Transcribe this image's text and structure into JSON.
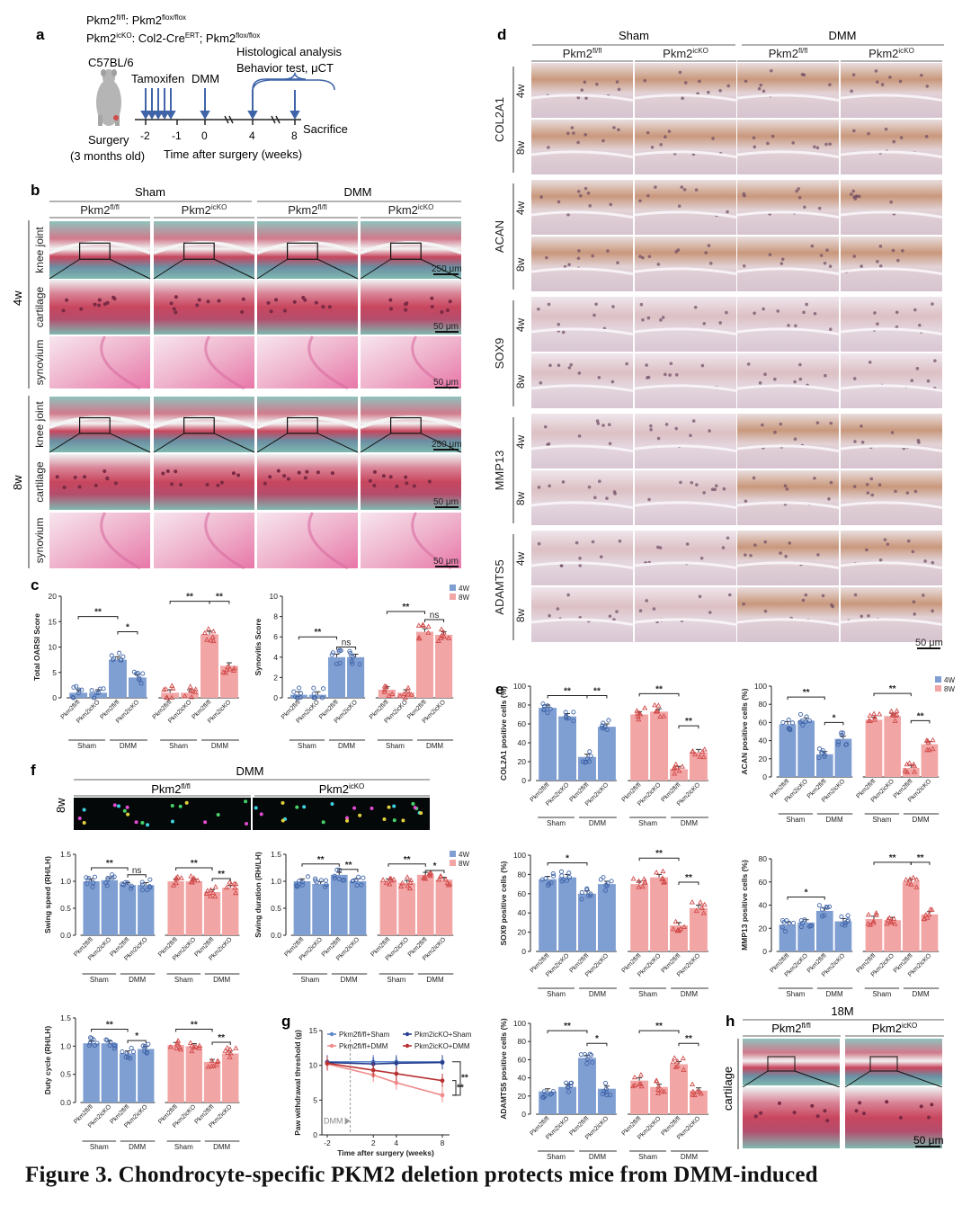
{
  "figure_caption": "Figure 3. Chondrocyte-specific PKM2 deletion protects mice from DMM-induced",
  "colors": {
    "blue": "#7f9ed2",
    "blue_dark": "#3f64a8",
    "red": "#f2a5a5",
    "red_dark": "#d24b4b",
    "sofr_red": "#c8465e",
    "sofr_teal": "#7fb9b0",
    "he_pink": "#f0a8c8",
    "ihc_bg": "#ebe0e6",
    "ihc_brown": "#b07a5a"
  },
  "panels": {
    "a": {
      "letter": "a",
      "genotype_ctrl": {
        "pre": "Pkm2",
        "sup": "fl/fl",
        "post": ": Pkm2",
        "sup2": "flox/flox"
      },
      "genotype_ko": {
        "pre": "Pkm2",
        "sup": "icKO",
        "post": ": Col2-Cre",
        "sup2": "ERT",
        "post2": "; Pkm2",
        "sup3": "flox/flox"
      },
      "strain": "C57BL/6",
      "tamoxifen": "Tamoxifen",
      "dmm": "DMM",
      "histology": "Histological analysis",
      "behavior": "Behavior test, μCT",
      "sacrifice": "Sacrifice",
      "surgery": "Surgery",
      "age": "(3 months old)",
      "axis_title": "Time after surgery (weeks)",
      "ticks": [
        "-2",
        "-1",
        "0",
        "4",
        "8"
      ]
    },
    "b": {
      "letter": "b",
      "group_sham": "Sham",
      "group_dmm": "DMM",
      "cols": [
        {
          "pre": "Pkm2",
          "sup": "fl/fl"
        },
        {
          "pre": "Pkm2",
          "sup": "icKO"
        },
        {
          "pre": "Pkm2",
          "sup": "fl/fl"
        },
        {
          "pre": "Pkm2",
          "sup": "icKO"
        }
      ],
      "time_4w": "4w",
      "time_8w": "8w",
      "row_labels": [
        "knee joint",
        "cartilage",
        "synovium"
      ],
      "scale_joint": "250 μm",
      "scale_cart": "50 μm",
      "scale_syn": "50 μm"
    },
    "c": {
      "letter": "c",
      "ylabel_left": "Total OARSI Score",
      "ylabel_right": "Synovitis Score",
      "yticks_left": [
        "0",
        "5",
        "10",
        "15",
        "20"
      ],
      "yticks_right": [
        "0",
        "2",
        "4",
        "6",
        "8",
        "10"
      ],
      "legend": [
        "4W",
        "8W"
      ],
      "sig_double": "**",
      "sig_single": "*",
      "sig_ns": "ns",
      "groups": [
        "Sham",
        "DMM"
      ]
    },
    "d": {
      "letter": "d",
      "group_sham": "Sham",
      "group_dmm": "DMM",
      "markers": [
        "COL2A1",
        "ACAN",
        "SOX9",
        "MMP13",
        "ADAMTS5"
      ],
      "times": [
        "4w",
        "8w"
      ],
      "scale": "50 μm"
    },
    "e": {
      "letter": "e",
      "legend": [
        "4W",
        "8W"
      ],
      "ylabels": [
        "COL2A1 positive cells (%)",
        "ACAN positive cells (%)",
        "SOX9 positive cells (%)",
        "MMP13 positive cells (%)",
        "ADAMTS5 positive cells (%)"
      ],
      "yticks100": [
        "0",
        "20",
        "40",
        "60",
        "80",
        "100"
      ],
      "yticks80": [
        "0",
        "20",
        "40",
        "60",
        "80"
      ],
      "groups": [
        "Sham",
        "DMM"
      ]
    },
    "f": {
      "letter": "f",
      "group": "DMM",
      "time": "8w",
      "cols": [
        {
          "pre": "Pkm2",
          "sup": "fl/fl"
        },
        {
          "pre": "Pkm2",
          "sup": "icKO"
        }
      ],
      "ylabels": [
        "Swing speed (RH/LH)",
        "Swing duration (RH/LH)",
        "Duty cycle (RH/LH)"
      ],
      "yticks": [
        "0.0",
        "0.5",
        "1.0",
        "1.5"
      ],
      "legend": [
        "4W",
        "8W"
      ]
    },
    "g": {
      "letter": "g",
      "ylabel": "Paw withdrawal threshold (g)",
      "xlabel": "Time after surgery (weeks)",
      "dmm": "DMM",
      "xticks": [
        "-2",
        "2",
        "4",
        "8"
      ],
      "yticks": [
        "0",
        "5",
        "10",
        "15"
      ]
    },
    "h": {
      "letter": "h",
      "title": "18M",
      "cols": [
        {
          "pre": "Pkm2",
          "sup": "fl/fl"
        },
        {
          "pre": "Pkm2",
          "sup": "icKO"
        }
      ],
      "row": "cartilage",
      "scale": "50 μm"
    }
  },
  "tick_genotypes": {
    "ctrl": "Pkm2fl/fl",
    "ko": "Pkm2icKO"
  },
  "chart_data": [
    {
      "id": "c-oarsi",
      "type": "bar",
      "ylabel": "Total OARSI Score",
      "ylim": [
        0,
        20
      ],
      "categories": [
        "Sham Pkm2fl/fl",
        "Sham Pkm2icKO",
        "DMM Pkm2fl/fl",
        "DMM Pkm2icKO"
      ],
      "series": [
        {
          "name": "4W",
          "values": [
            1.0,
            1.0,
            7.5,
            4.0
          ]
        },
        {
          "name": "8W",
          "values": [
            1.0,
            1.0,
            12.5,
            6.3
          ]
        }
      ]
    },
    {
      "id": "c-synovitis",
      "type": "bar",
      "ylabel": "Synovitis Score",
      "ylim": [
        0,
        10
      ],
      "categories": [
        "Sham Pkm2fl/fl",
        "Sham Pkm2icKO",
        "DMM Pkm2fl/fl",
        "DMM Pkm2icKO"
      ],
      "series": [
        {
          "name": "4W",
          "values": [
            0.3,
            0.3,
            4.0,
            4.0
          ]
        },
        {
          "name": "8W",
          "values": [
            0.8,
            0.5,
            6.5,
            6.2
          ]
        }
      ]
    },
    {
      "id": "e-col2a1",
      "type": "bar",
      "ylabel": "COL2A1 positive cells (%)",
      "ylim": [
        0,
        100
      ],
      "series": [
        {
          "name": "4W",
          "values": [
            77,
            68,
            25,
            57
          ]
        },
        {
          "name": "8W",
          "values": [
            70,
            73,
            12,
            30
          ]
        }
      ]
    },
    {
      "id": "e-acan",
      "type": "bar",
      "ylabel": "ACAN positive cells (%)",
      "ylim": [
        0,
        100
      ],
      "series": [
        {
          "name": "4W",
          "values": [
            58,
            62,
            25,
            42
          ]
        },
        {
          "name": "8W",
          "values": [
            63,
            67,
            10,
            36
          ]
        }
      ]
    },
    {
      "id": "e-sox9",
      "type": "bar",
      "ylabel": "SOX9 positive cells (%)",
      "ylim": [
        0,
        100
      ],
      "series": [
        {
          "name": "4W",
          "values": [
            75,
            77,
            60,
            70
          ]
        },
        {
          "name": "8W",
          "values": [
            70,
            77,
            27,
            45
          ]
        }
      ]
    },
    {
      "id": "e-mmp13",
      "type": "bar",
      "ylabel": "MMP13 positive cells (%)",
      "ylim": [
        0,
        80
      ],
      "series": [
        {
          "name": "4W",
          "values": [
            23,
            25,
            35,
            26
          ]
        },
        {
          "name": "8W",
          "values": [
            28,
            27,
            60,
            32
          ]
        }
      ]
    },
    {
      "id": "e-adamts5",
      "type": "bar",
      "ylabel": "ADAMTS5 positive cells (%)",
      "ylim": [
        0,
        100
      ],
      "series": [
        {
          "name": "4W",
          "values": [
            25,
            30,
            62,
            28
          ]
        },
        {
          "name": "8W",
          "values": [
            37,
            30,
            55,
            26
          ]
        }
      ]
    },
    {
      "id": "f-speed",
      "type": "bar",
      "ylabel": "Swing speed (RH/LH)",
      "ylim": [
        0,
        1.5
      ],
      "series": [
        {
          "name": "4W",
          "values": [
            1.0,
            1.02,
            0.93,
            0.93
          ]
        },
        {
          "name": "8W",
          "values": [
            1.0,
            1.0,
            0.8,
            0.88
          ]
        }
      ]
    },
    {
      "id": "f-duration",
      "type": "bar",
      "ylabel": "Swing duration (RH/LH)",
      "ylim": [
        0,
        1.5
      ],
      "series": [
        {
          "name": "4W",
          "values": [
            1.0,
            0.95,
            1.12,
            1.0
          ]
        },
        {
          "name": "8W",
          "values": [
            1.0,
            0.97,
            1.12,
            1.03
          ]
        }
      ]
    },
    {
      "id": "f-duty",
      "type": "bar",
      "ylabel": "Duty cycle (RH/LH)",
      "ylim": [
        0,
        1.5
      ],
      "series": [
        {
          "name": "4W",
          "values": [
            1.05,
            1.05,
            0.87,
            0.95
          ]
        },
        {
          "name": "8W",
          "values": [
            1.02,
            1.0,
            0.72,
            0.87
          ]
        }
      ]
    },
    {
      "id": "g-paw",
      "type": "line",
      "ylabel": "Paw withdrawal threshold (g)",
      "xlabel": "Time after surgery (weeks)",
      "ylim": [
        0,
        15
      ],
      "x": [
        -2,
        2,
        4,
        8
      ],
      "series": [
        {
          "name": "Pkm2fl/fl+Sham",
          "values": [
            10.5,
            10.5,
            10.5,
            10.5
          ]
        },
        {
          "name": "Pkm2icKO+Sham",
          "values": [
            10.4,
            10.2,
            10.3,
            10.4
          ]
        },
        {
          "name": "Pkm2fl/fl+DMM",
          "values": [
            10.2,
            8.6,
            7.5,
            5.7
          ]
        },
        {
          "name": "Pkm2icKO+DMM",
          "values": [
            10.3,
            9.3,
            8.8,
            7.8
          ]
        }
      ]
    }
  ]
}
